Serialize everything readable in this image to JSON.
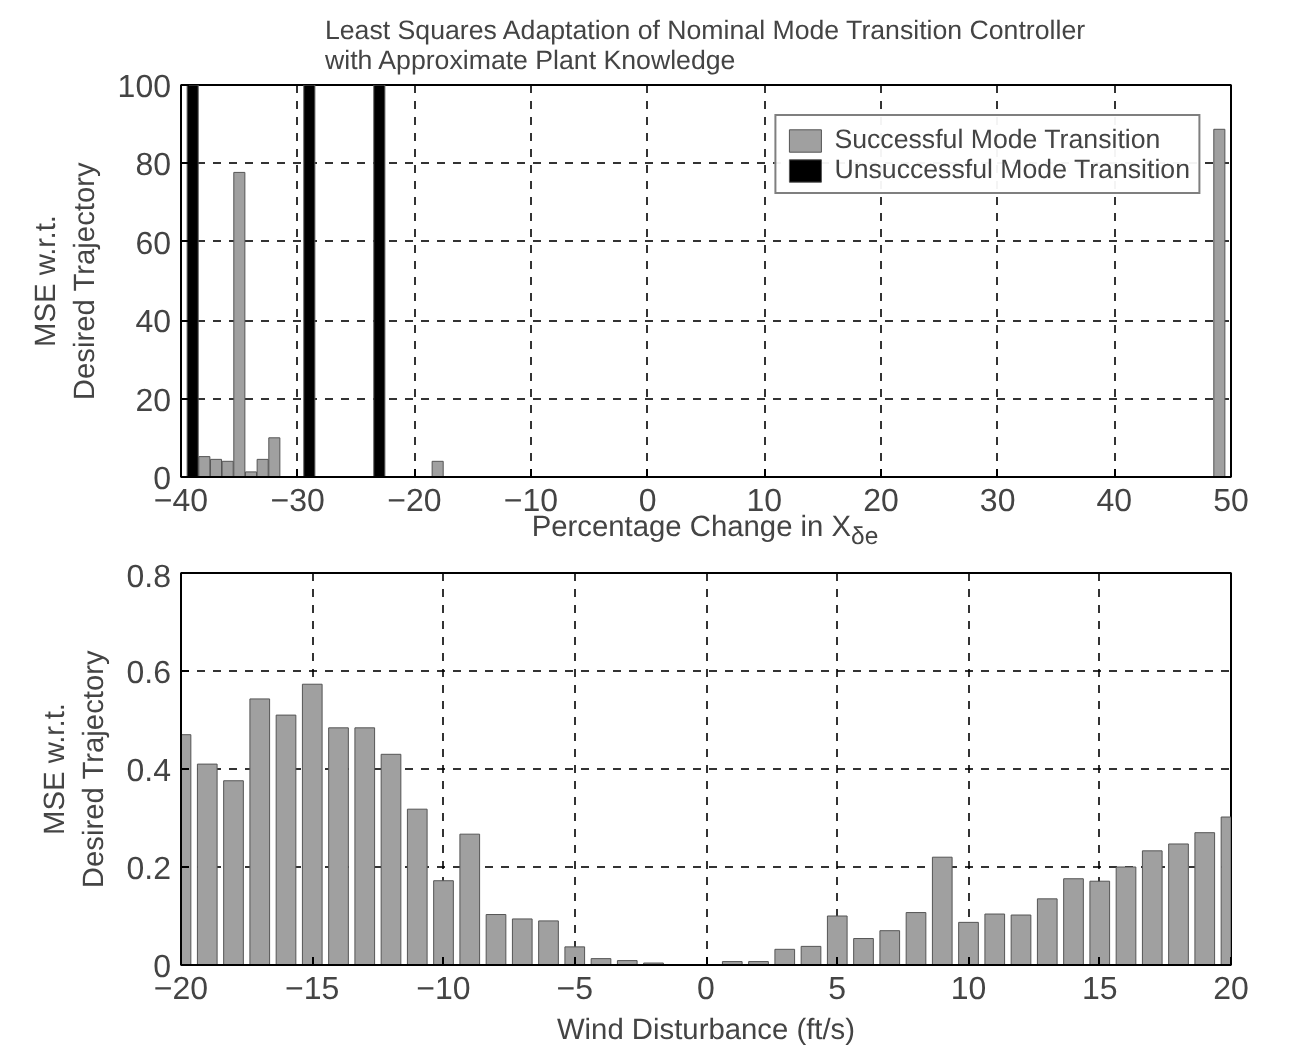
{
  "chart_data": [
    {
      "type": "bar",
      "title": "Least Squares Adaptation of Nominal Mode Transition Controller\nwith Approximate Plant Knowledge",
      "xlabel": "Percentage Change in X$_{δe}$",
      "ylabel": "MSE w.r.t.\nDesired Trajectory",
      "xlim": [
        -40,
        50
      ],
      "xticks": [
        -40,
        -30,
        -20,
        -10,
        0,
        10,
        20,
        30,
        40,
        50
      ],
      "ylim": [
        0,
        100
      ],
      "yticks": [
        0,
        20,
        40,
        60,
        80,
        100
      ],
      "grid": true,
      "legend": "top right",
      "series": [
        {
          "name": "Successful Mode Transition",
          "color": "#a0a0a0",
          "x": [
            -38,
            -37,
            -36,
            -35,
            -34,
            -33,
            -32,
            -18,
            49
          ],
          "values": [
            5.2,
            4.5,
            4,
            77.7,
            1.3,
            4.5,
            10,
            4,
            88.7
          ]
        },
        {
          "name": "Unsuccessful Mode Transition",
          "color": "#000000",
          "x": [
            -39,
            -29,
            -23
          ],
          "values": [
            100,
            100,
            100
          ]
        }
      ]
    },
    {
      "type": "bar",
      "xlabel": "Wind Disturbance (ft/s)",
      "ylabel": "MSE w.r.t.\nDesired Trajectory",
      "xlim": [
        -20,
        20
      ],
      "xticks": [
        -20,
        -15,
        -10,
        -5,
        0,
        5,
        10,
        15,
        20
      ],
      "ylim": [
        0,
        0.8
      ],
      "yticks": [
        0,
        0.2,
        0.4,
        0.6,
        0.8
      ],
      "grid": true,
      "x": [
        -20,
        -19,
        -18,
        -17,
        -16,
        -15,
        -14,
        -13,
        -12,
        -11,
        -10,
        -9,
        -8,
        -7,
        -6,
        -5,
        -4,
        -3,
        -2,
        -1,
        0,
        1,
        2,
        3,
        4,
        5,
        6,
        7,
        8,
        9,
        10,
        11,
        12,
        13,
        14,
        15,
        16,
        17,
        18,
        19,
        20
      ],
      "values": [
        0.47,
        0.41,
        0.376,
        0.543,
        0.51,
        0.573,
        0.484,
        0.484,
        0.43,
        0.318,
        0.172,
        0.267,
        0.103,
        0.094,
        0.09,
        0.037,
        0.013,
        0.009,
        0.004,
        0.001,
        0.001,
        0.007,
        0.007,
        0.032,
        0.038,
        0.1,
        0.054,
        0.07,
        0.107,
        0.22,
        0.087,
        0.104,
        0.102,
        0.135,
        0.176,
        0.171,
        0.2,
        0.233,
        0.247,
        0.27,
        0.302
      ],
      "color": "#a0a0a0"
    }
  ]
}
